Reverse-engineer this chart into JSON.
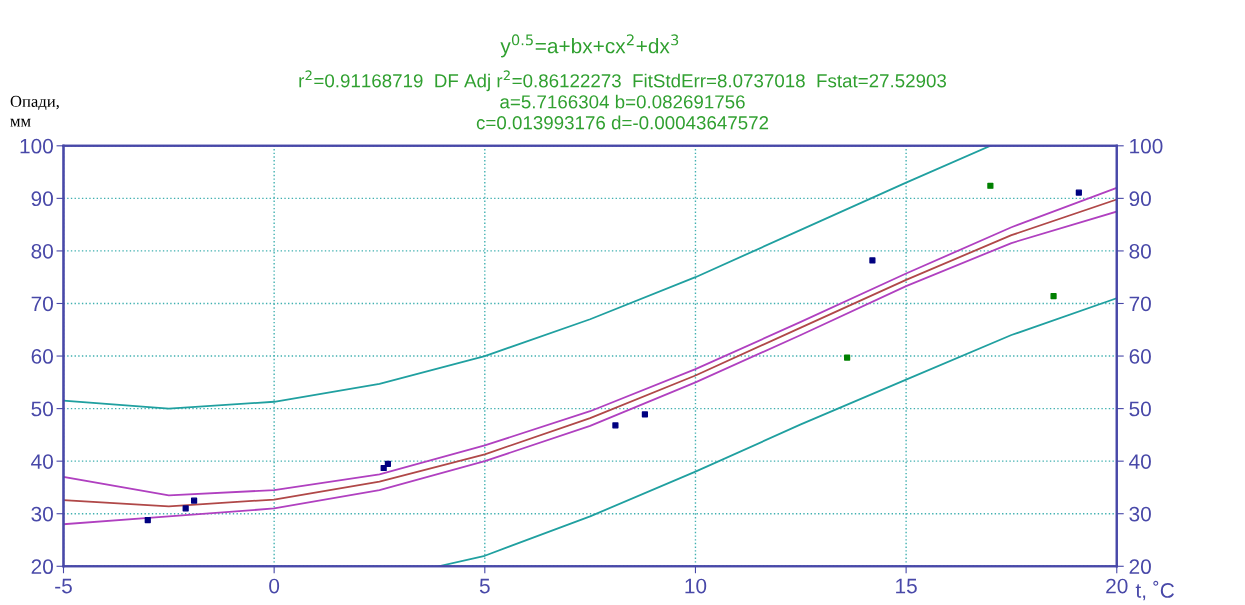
{
  "chart_data": {
    "type": "line",
    "title": "y$^{0.5}$=a+bx+cx$^{2}$+dx$^{3}$",
    "subtitle": "r$^{2}$=0.91168719  DF Adj r$^{2}$=0.86122273  FitStdErr=8.0737018  Fstat=27.52903\na=5.7166304 b=0.082691756\nc=0.013993176 d=-0.00043647572",
    "ylabel": "Опади,\nмм",
    "xlabel": "t, ˚C",
    "xlim": [
      -5,
      20
    ],
    "xticks": [
      -5,
      0,
      5,
      10,
      15,
      20
    ],
    "ylim": [
      20,
      100
    ],
    "yticks": [
      20,
      30,
      40,
      50,
      60,
      70,
      80,
      90,
      100
    ],
    "y2lim": [
      20,
      100
    ],
    "y2ticks": [
      20,
      30,
      40,
      50,
      60,
      70,
      80,
      90,
      100
    ],
    "grid": true,
    "line_style": "solid",
    "series": [
      {
        "color": "#b04848",
        "x": [
          -5,
          -2.5,
          0,
          2.5,
          5,
          7.5,
          10,
          12.5,
          15,
          17.5,
          20
        ],
        "values": [
          32.6,
          31.4,
          32.7,
          36.1,
          41.3,
          48.2,
          56.3,
          65.4,
          74.5,
          83.0,
          89.8
        ]
      },
      {
        "color": "#b040c0",
        "x": [
          -5,
          -2.5,
          0,
          2.5,
          5,
          7.5,
          10,
          12.5,
          15,
          17.5,
          20
        ],
        "values": [
          37,
          33.5,
          34.5,
          37.5,
          43,
          49.5,
          57.5,
          66.5,
          75.7,
          84.5,
          92
        ]
      },
      {
        "color": "#b040c0",
        "x": [
          -5,
          -2.5,
          0,
          2.5,
          5,
          7.5,
          10,
          12.5,
          15,
          17.5,
          20
        ],
        "values": [
          28,
          29.5,
          31,
          34.5,
          40,
          46.7,
          55,
          64,
          73.3,
          81.5,
          87.5
        ]
      },
      {
        "color": "#20a0a0",
        "x": [
          -5,
          -2.5,
          0,
          2.5,
          5,
          7.5,
          10,
          12.5,
          15,
          17
        ],
        "values": [
          51.5,
          50,
          51.3,
          54.7,
          60,
          67,
          75,
          84,
          93,
          100
        ]
      },
      {
        "color": "#20a0a0",
        "x": [
          3.9,
          5,
          7.5,
          10,
          12.5,
          15,
          17.5,
          20
        ],
        "values": [
          20,
          22,
          29.5,
          38,
          47,
          55.5,
          64,
          71
        ]
      },
      {
        "type": "scatter",
        "marker": "square",
        "color": "#000080",
        "x": [
          -3.0,
          -2.1,
          -1.9,
          2.6,
          2.7,
          8.1,
          8.8,
          14.2,
          19.1
        ],
        "values": [
          28.8,
          31,
          32.5,
          38.7,
          39.5,
          46.8,
          48.9,
          78.2,
          91.1
        ]
      },
      {
        "type": "scatter",
        "marker": "square",
        "color": "#008000",
        "x": [
          13.6,
          17.0,
          18.5
        ],
        "values": [
          59.7,
          92.4,
          71.4
        ]
      }
    ]
  }
}
